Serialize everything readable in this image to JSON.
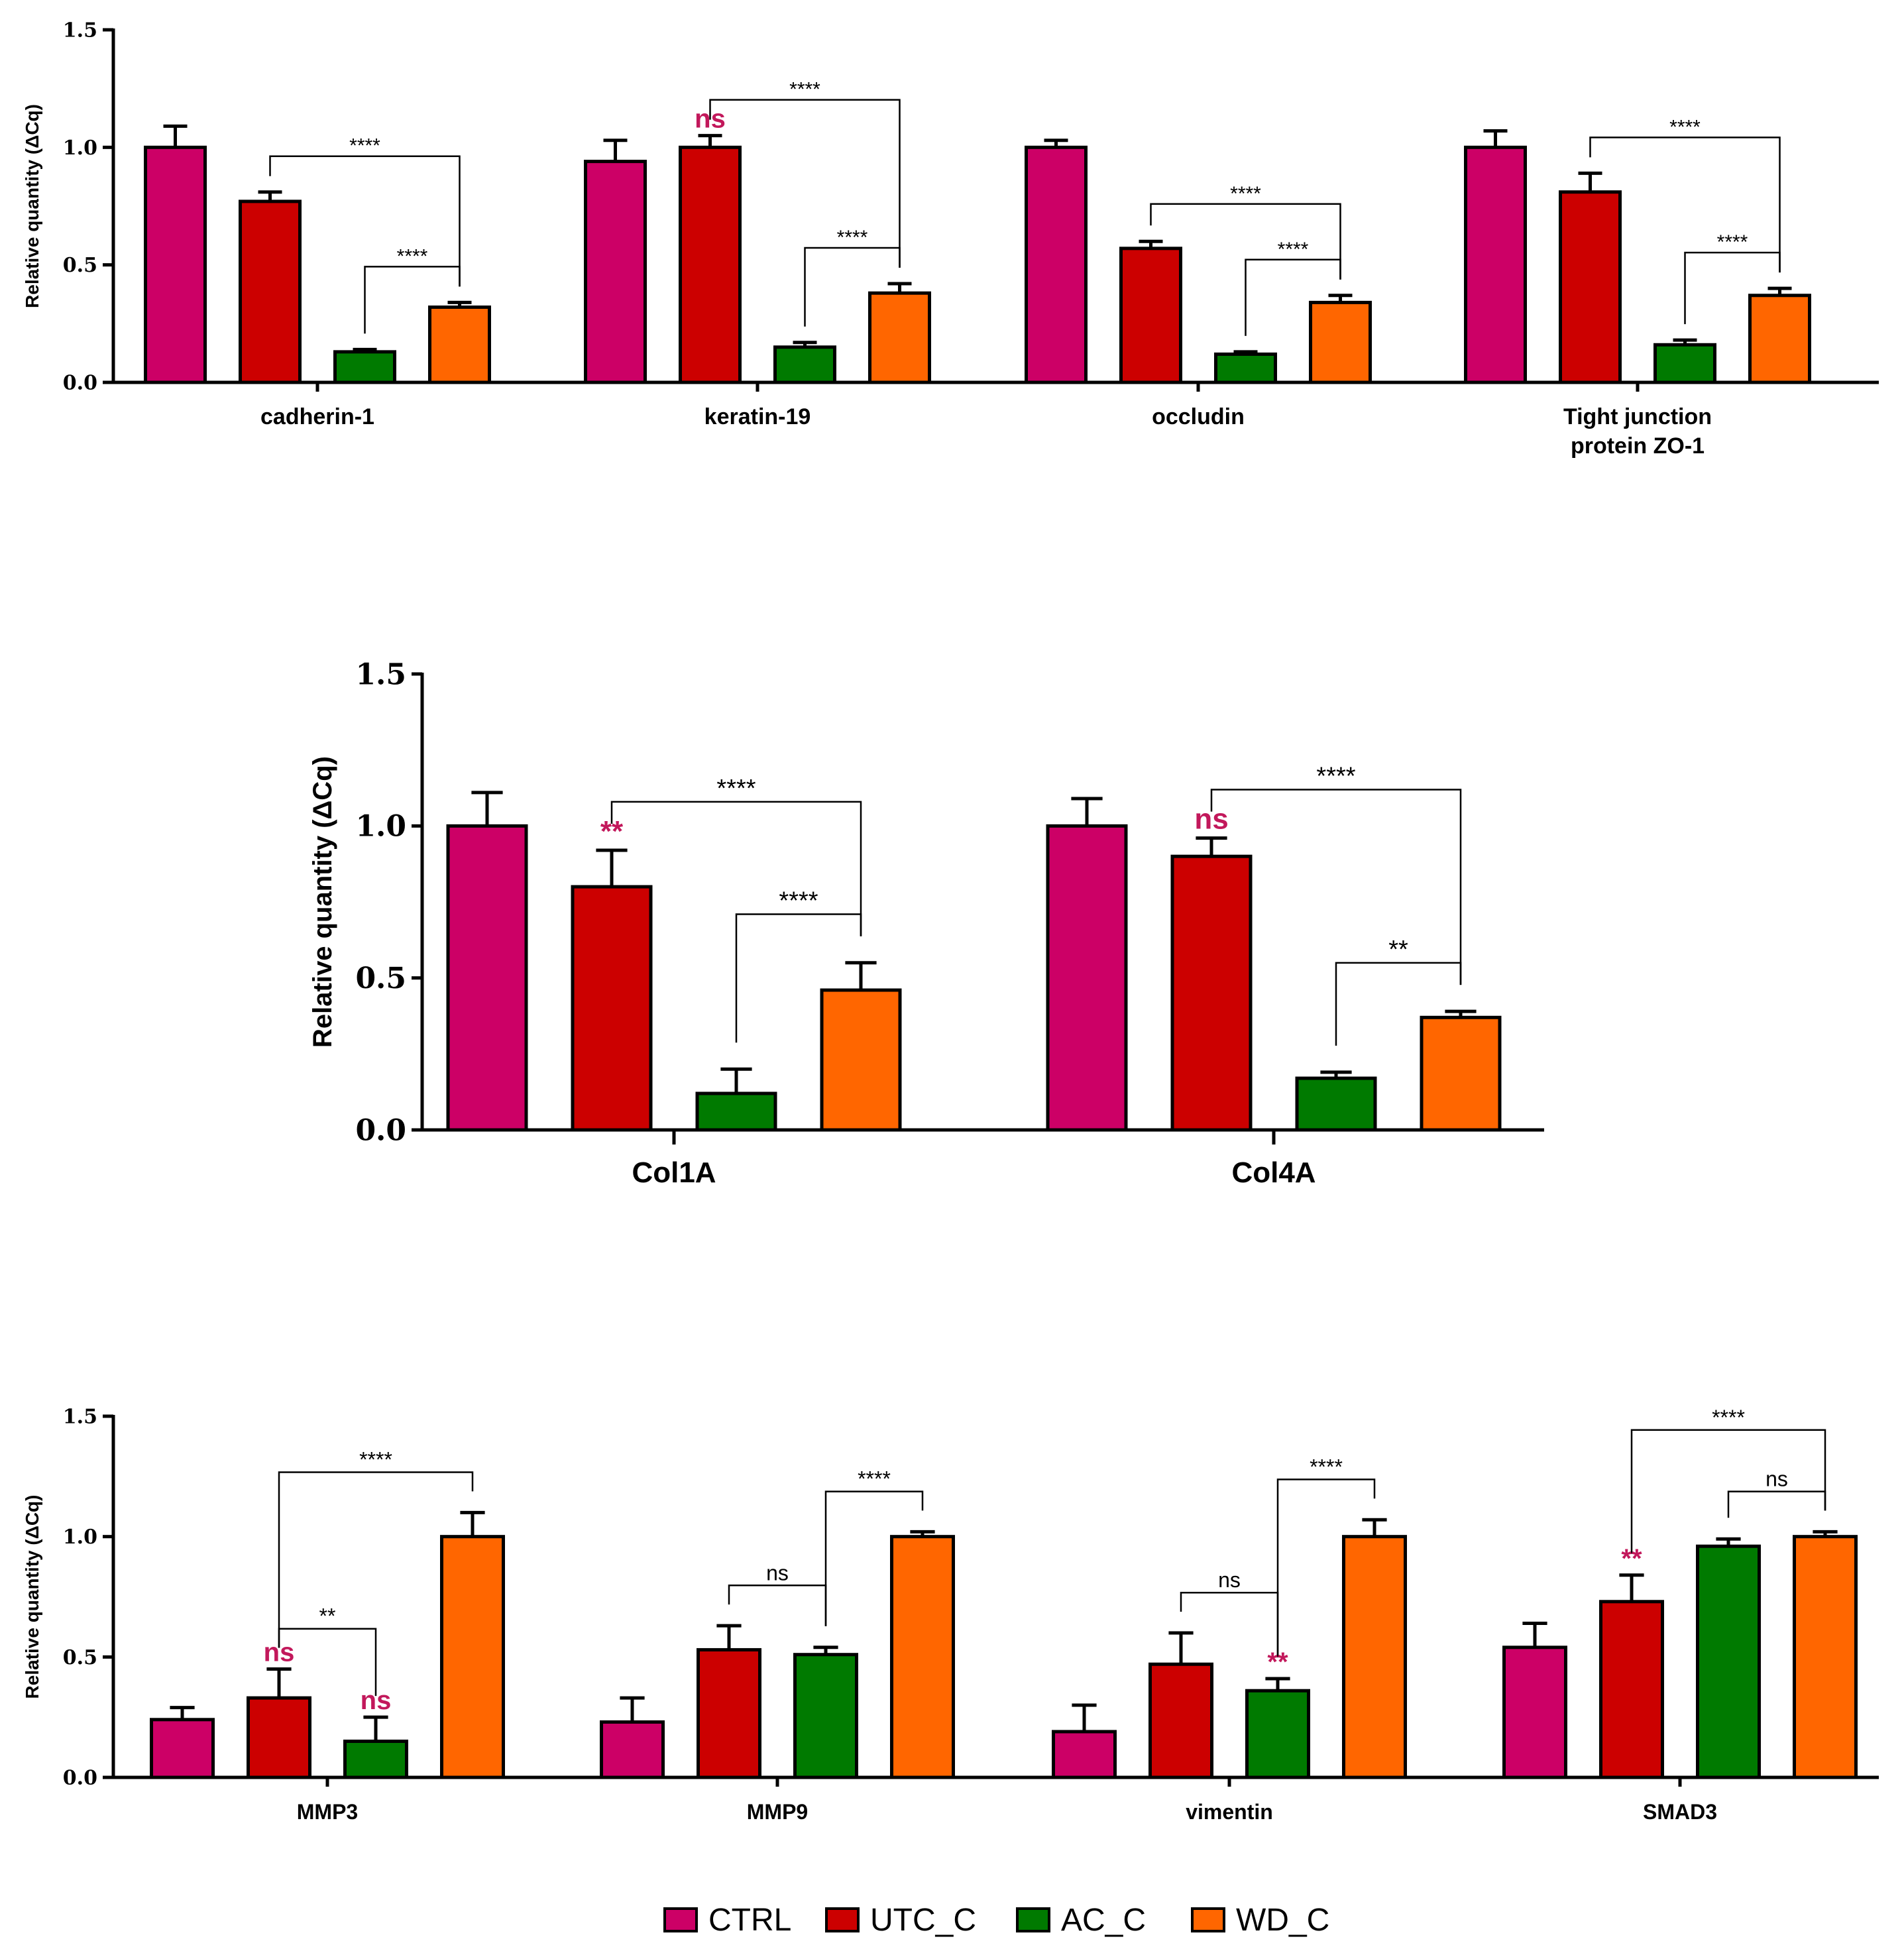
{
  "legend": [
    {
      "name": "CTRL",
      "color": "#cc0066"
    },
    {
      "name": "UTC_C",
      "color": "#cc0000"
    },
    {
      "name": "AC_C",
      "color": "#007a00"
    },
    {
      "name": "WD_C",
      "color": "#ff6600"
    }
  ],
  "colors": {
    "annotation_pink": "#c2185b"
  },
  "chart_data": [
    {
      "type": "bar",
      "ylabel": "Relative quantity (ΔCq)",
      "ylim": [
        0,
        1.5
      ],
      "yticks": [
        "0.0",
        "0.5",
        "1.0",
        "1.5"
      ],
      "categories": [
        "cadherin-1",
        "keratin-19",
        "occludin",
        "Tight junction protein ZO-1"
      ],
      "category_lines": [
        [
          "cadherin-1"
        ],
        [
          "keratin-19"
        ],
        [
          "occludin"
        ],
        [
          "Tight junction",
          "protein ZO-1"
        ]
      ],
      "series": [
        {
          "name": "CTRL",
          "values": [
            1.0,
            0.94,
            1.0,
            1.0
          ],
          "errors": [
            0.09,
            0.09,
            0.03,
            0.07
          ]
        },
        {
          "name": "UTC_C",
          "values": [
            0.77,
            1.0,
            0.57,
            0.81
          ],
          "errors": [
            0.04,
            0.05,
            0.03,
            0.08
          ]
        },
        {
          "name": "AC_C",
          "values": [
            0.13,
            0.15,
            0.12,
            0.16
          ],
          "errors": [
            0.01,
            0.02,
            0.01,
            0.02
          ]
        },
        {
          "name": "WD_C",
          "values": [
            0.32,
            0.38,
            0.34,
            0.37
          ],
          "errors": [
            0.02,
            0.04,
            0.03,
            0.03
          ]
        }
      ],
      "comparisons": [
        {
          "category": 0,
          "from": 1,
          "to": 3,
          "label": "****"
        },
        {
          "category": 0,
          "from": 2,
          "to": 3,
          "label": "****"
        },
        {
          "category": 1,
          "from": 1,
          "to": 3,
          "label": "****"
        },
        {
          "category": 1,
          "from": 2,
          "to": 3,
          "label": "****"
        },
        {
          "category": 2,
          "from": 1,
          "to": 3,
          "label": "****"
        },
        {
          "category": 2,
          "from": 2,
          "to": 3,
          "label": "****"
        },
        {
          "category": 3,
          "from": 1,
          "to": 3,
          "label": "****"
        },
        {
          "category": 3,
          "from": 2,
          "to": 3,
          "label": "****"
        }
      ],
      "marks": [
        {
          "category": 1,
          "series": 1,
          "label": "ns"
        }
      ]
    },
    {
      "type": "bar",
      "ylabel": "Relative quantity (ΔCq)",
      "ylim": [
        0,
        1.5
      ],
      "yticks": [
        "0.0",
        "0.5",
        "1.0",
        "1.5"
      ],
      "categories": [
        "Col1A",
        "Col4A"
      ],
      "category_lines": [
        [
          "Col1A"
        ],
        [
          "Col4A"
        ]
      ],
      "series": [
        {
          "name": "CTRL",
          "values": [
            1.0,
            1.0
          ],
          "errors": [
            0.11,
            0.09
          ]
        },
        {
          "name": "UTC_C",
          "values": [
            0.8,
            0.9
          ],
          "errors": [
            0.12,
            0.06
          ]
        },
        {
          "name": "AC_C",
          "values": [
            0.12,
            0.17
          ],
          "errors": [
            0.08,
            0.02
          ]
        },
        {
          "name": "WD_C",
          "values": [
            0.46,
            0.37
          ],
          "errors": [
            0.09,
            0.02
          ]
        }
      ],
      "comparisons": [
        {
          "category": 0,
          "from": 1,
          "to": 3,
          "label": "****"
        },
        {
          "category": 0,
          "from": 2,
          "to": 3,
          "label": "****"
        },
        {
          "category": 1,
          "from": 1,
          "to": 3,
          "label": "****"
        },
        {
          "category": 1,
          "from": 2,
          "to": 3,
          "label": "**"
        }
      ],
      "marks": [
        {
          "category": 0,
          "series": 1,
          "label": "**"
        },
        {
          "category": 1,
          "series": 1,
          "label": "ns"
        }
      ]
    },
    {
      "type": "bar",
      "ylabel": "Relative quantity (ΔCq)",
      "ylim": [
        0,
        1.5
      ],
      "yticks": [
        "0.0",
        "0.5",
        "1.0",
        "1.5"
      ],
      "categories": [
        "MMP3",
        "MMP9",
        "vimentin",
        "SMAD3"
      ],
      "category_lines": [
        [
          "MMP3"
        ],
        [
          "MMP9"
        ],
        [
          "vimentin"
        ],
        [
          "SMAD3"
        ]
      ],
      "series": [
        {
          "name": "CTRL",
          "values": [
            0.24,
            0.23,
            0.19,
            0.54
          ],
          "errors": [
            0.05,
            0.1,
            0.11,
            0.1
          ]
        },
        {
          "name": "UTC_C",
          "values": [
            0.33,
            0.53,
            0.47,
            0.73
          ],
          "errors": [
            0.12,
            0.1,
            0.13,
            0.11
          ]
        },
        {
          "name": "AC_C",
          "values": [
            0.15,
            0.51,
            0.36,
            0.96
          ],
          "errors": [
            0.1,
            0.03,
            0.05,
            0.03
          ]
        },
        {
          "name": "WD_C",
          "values": [
            1.0,
            1.0,
            1.0,
            1.0
          ],
          "errors": [
            0.1,
            0.02,
            0.07,
            0.02
          ]
        }
      ],
      "comparisons": [
        {
          "category": 0,
          "from": 1,
          "to": 3,
          "label": "****"
        },
        {
          "category": 0,
          "from": 1,
          "to": 2,
          "label": "**"
        },
        {
          "category": 1,
          "from": 2,
          "to": 3,
          "label": "****"
        },
        {
          "category": 1,
          "from": 1,
          "to": 2,
          "label": "ns"
        },
        {
          "category": 2,
          "from": 2,
          "to": 3,
          "label": "****"
        },
        {
          "category": 2,
          "from": 1,
          "to": 2,
          "label": "ns"
        },
        {
          "category": 3,
          "from": 1,
          "to": 3,
          "label": "****"
        },
        {
          "category": 3,
          "from": 2,
          "to": 3,
          "label": "ns"
        }
      ],
      "marks": [
        {
          "category": 0,
          "series": 1,
          "label": "ns"
        },
        {
          "category": 0,
          "series": 2,
          "label": "ns"
        },
        {
          "category": 2,
          "series": 2,
          "label": "**"
        },
        {
          "category": 3,
          "series": 1,
          "label": "**"
        }
      ]
    }
  ]
}
